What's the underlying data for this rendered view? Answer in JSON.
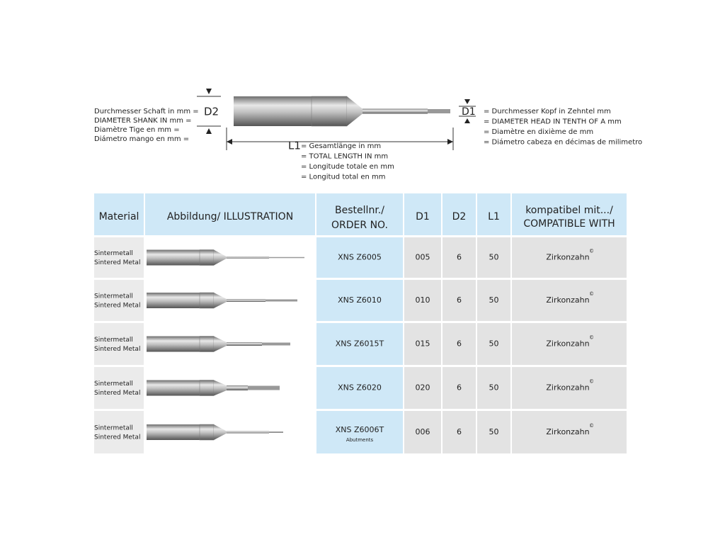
{
  "legend": {
    "d2": "D2",
    "d2_lines": [
      "Durchmesser Schaft in mm =",
      "DIAMETER SHANK IN mm =",
      "Diamètre Tige en mm =",
      "Diámetro mango en mm ="
    ],
    "d1": "D1",
    "d1_lines": [
      "= Durchmesser Kopf in Zehntel mm",
      "= DIAMETER HEAD IN TENTH OF A mm",
      "= Diamètre en dixième de mm",
      "= Diámetro cabeza en décimas de milimetro"
    ],
    "l1": "L1",
    "l1_lines": [
      "= Gesamtlänge in  mm",
      "= TOTAL LENGTH IN mm",
      "= Longitude totale en mm",
      "= Longitud total en mm"
    ]
  },
  "table": {
    "headers": {
      "material": "Material",
      "illustration": "Abbildung/ ILLUSTRATION",
      "order": [
        "Bestellnr./",
        "ORDER NO."
      ],
      "d1": "D1",
      "d2": "D2",
      "l1": "L1",
      "compat": [
        "kompatibel mit.../",
        "COMPATIBLE WITH"
      ]
    },
    "rows": [
      {
        "material": [
          "Sintermetall",
          "Sintered Metal"
        ],
        "order": "XNS Z6005",
        "d1": "005",
        "d2": "6",
        "l1": "50",
        "compat": "Zirkonzahn",
        "mark": "©"
      },
      {
        "material": [
          "Sintermetall",
          "Sintered Metal"
        ],
        "order": "XNS Z6010",
        "d1": "010",
        "d2": "6",
        "l1": "50",
        "compat": "Zirkonzahn",
        "mark": "©"
      },
      {
        "material": [
          "Sintermetall",
          "Sintered Metal"
        ],
        "order": "XNS Z6015T",
        "d1": "015",
        "d2": "6",
        "l1": "50",
        "compat": "Zirkonzahn",
        "mark": "©"
      },
      {
        "material": [
          "Sintermetall",
          "Sintered Metal"
        ],
        "order": "XNS Z6020",
        "d1": "020",
        "d2": "6",
        "l1": "50",
        "compat": "Zirkonzahn",
        "mark": "©"
      },
      {
        "material": [
          "Sintermetall",
          "Sintered Metal"
        ],
        "order": "XNS Z6006T",
        "note": "Abutments",
        "d1": "006",
        "d2": "6",
        "l1": "50",
        "compat": "Zirkonzahn",
        "mark": "©"
      }
    ]
  }
}
